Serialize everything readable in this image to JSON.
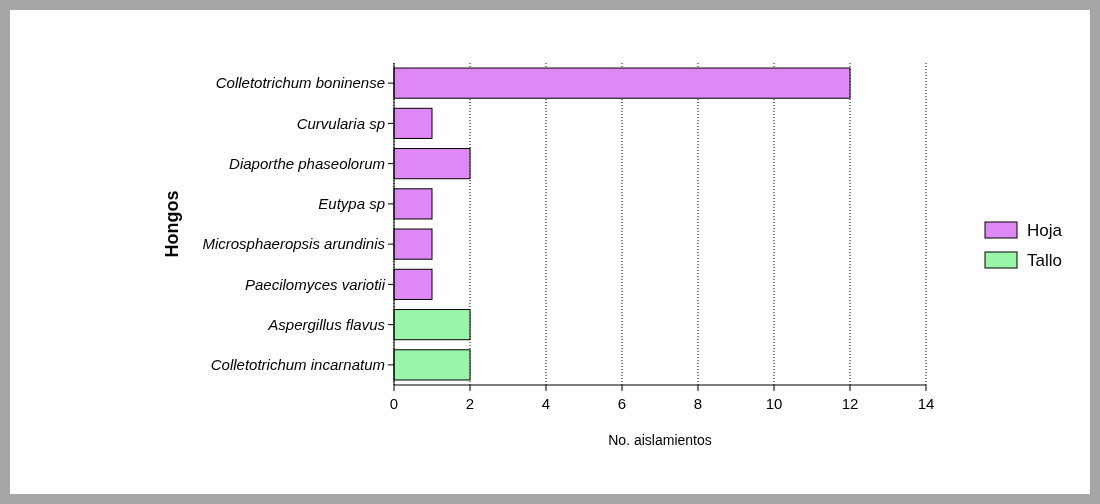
{
  "chart_data": {
    "type": "bar",
    "orientation": "horizontal",
    "stacked": true,
    "xlabel": "No. aislamientos",
    "ylabel": "Hongos",
    "categories": [
      "Colletotrichum boninense",
      "Curvularia sp",
      "Diaporthe phaseolorum",
      "Eutypa sp",
      "Microsphaeropsis arundinis",
      "Paecilomyces variotii",
      "Aspergillus flavus",
      "Colletotrichum incarnatum"
    ],
    "series": [
      {
        "name": "Hoja",
        "color": "#dd88f5",
        "values": [
          12,
          1,
          2,
          1,
          1,
          1,
          null,
          null
        ]
      },
      {
        "name": "Tallo",
        "color": "#99f5a8",
        "values": [
          null,
          null,
          null,
          null,
          null,
          null,
          2,
          2
        ]
      }
    ],
    "xlim": [
      0,
      14
    ],
    "xticks": [
      0,
      2,
      4,
      6,
      8,
      10,
      12,
      14
    ],
    "grid": "x",
    "legend": "right"
  }
}
